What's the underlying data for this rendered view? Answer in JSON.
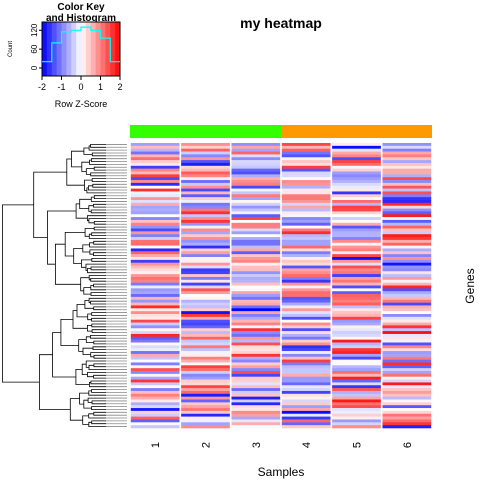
{
  "chart_data": {
    "type": "heatmap",
    "title": "my heatmap",
    "xlabel": "Samples",
    "ylabel": "Genes",
    "samples": [
      "1",
      "2",
      "3",
      "4",
      "5",
      "6"
    ],
    "sample_groups": [
      {
        "samples": [
          "1",
          "2",
          "3"
        ],
        "color": "#33ff00"
      },
      {
        "samples": [
          "4",
          "5",
          "6"
        ],
        "color": "#ff9900"
      }
    ],
    "n_rows": 100,
    "color_scale": {
      "low": "#0000ff",
      "mid": "#ffffff",
      "high": "#ff0000",
      "range": [
        -2,
        2
      ]
    },
    "dendrogram": {
      "rows": true,
      "columns": false
    },
    "color_key": {
      "title": "Color Key\nand Histogram",
      "xlabel": "Row Z-Score",
      "ylabel": "Count",
      "x_ticks": [
        "-2",
        "-1",
        "0",
        "1",
        "2"
      ],
      "y_ticks": [
        "0",
        "60",
        "120"
      ],
      "histogram_color": "#00ffff",
      "histogram_bins": [
        -2,
        -1.75,
        -1.5,
        -1.25,
        -1,
        -0.75,
        -0.5,
        -0.25,
        0,
        0.25,
        0.5,
        0.75,
        1,
        1.25,
        1.5,
        1.75,
        2
      ],
      "histogram_counts": [
        20,
        20,
        80,
        80,
        115,
        115,
        120,
        120,
        130,
        130,
        120,
        120,
        95,
        95,
        20,
        20
      ]
    }
  }
}
